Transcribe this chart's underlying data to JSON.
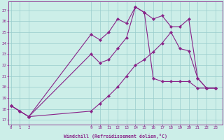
{
  "background_color": "#cceee8",
  "grid_color": "#99cccc",
  "line_color": "#882288",
  "xlabel": "Windchill (Refroidissement éolien,°C)",
  "x_ticks": [
    0,
    1,
    2,
    9,
    10,
    11,
    12,
    13,
    14,
    15,
    16,
    17,
    18,
    19,
    20,
    21,
    22,
    23
  ],
  "yticks": [
    17,
    18,
    19,
    20,
    21,
    22,
    23,
    24,
    25,
    26,
    27
  ],
  "ylim": [
    16.6,
    27.8
  ],
  "xlim": [
    -0.3,
    23.8
  ],
  "line1_x": [
    0,
    1,
    2,
    9,
    10,
    11,
    12,
    13,
    14,
    15,
    16,
    17,
    18,
    19,
    20,
    21,
    22,
    23
  ],
  "line1_y": [
    18.3,
    17.8,
    17.3,
    24.8,
    24.3,
    25.0,
    26.2,
    25.8,
    27.3,
    26.8,
    26.2,
    26.5,
    25.5,
    25.5,
    26.2,
    20.8,
    19.9,
    19.9
  ],
  "line2_x": [
    0,
    1,
    2,
    9,
    10,
    11,
    12,
    13,
    14,
    15,
    16,
    17,
    18,
    19,
    20,
    21,
    22,
    23
  ],
  "line2_y": [
    18.3,
    17.8,
    17.3,
    23.0,
    22.2,
    22.5,
    23.5,
    24.5,
    27.3,
    26.8,
    20.8,
    20.5,
    20.5,
    20.5,
    20.5,
    19.9,
    19.9,
    19.9
  ],
  "line3_x": [
    0,
    1,
    2,
    9,
    10,
    11,
    12,
    13,
    14,
    15,
    16,
    17,
    18,
    19,
    20,
    21,
    22,
    23
  ],
  "line3_y": [
    18.3,
    17.8,
    17.3,
    17.8,
    18.5,
    19.2,
    20.0,
    21.0,
    22.0,
    22.5,
    23.2,
    24.0,
    25.0,
    23.5,
    23.3,
    20.8,
    19.9,
    19.9
  ]
}
